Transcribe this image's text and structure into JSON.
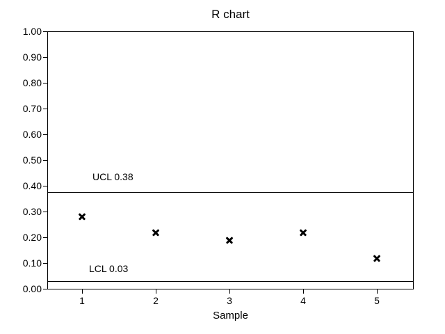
{
  "chart_data": {
    "type": "scatter",
    "title": "R chart",
    "xlabel": "Sample",
    "ylabel": "",
    "marker": "x",
    "x": [
      1,
      2,
      3,
      4,
      5
    ],
    "values": [
      0.28,
      0.22,
      0.19,
      0.22,
      0.12
    ],
    "control_limits": {
      "ucl": {
        "value": 0.375,
        "label": "UCL 0.38"
      },
      "lcl": {
        "value": 0.03,
        "label": "LCL 0.03"
      }
    },
    "xticks": [
      "1",
      "2",
      "3",
      "4",
      "5"
    ],
    "yticks": [
      "0.00",
      "0.10",
      "0.20",
      "0.30",
      "0.40",
      "0.50",
      "0.60",
      "0.70",
      "0.80",
      "0.90",
      "1.00"
    ],
    "ylim": [
      0,
      1
    ],
    "grid": false,
    "legend": null,
    "colors": {
      "foreground": "#000000",
      "background": "#ffffff"
    }
  }
}
